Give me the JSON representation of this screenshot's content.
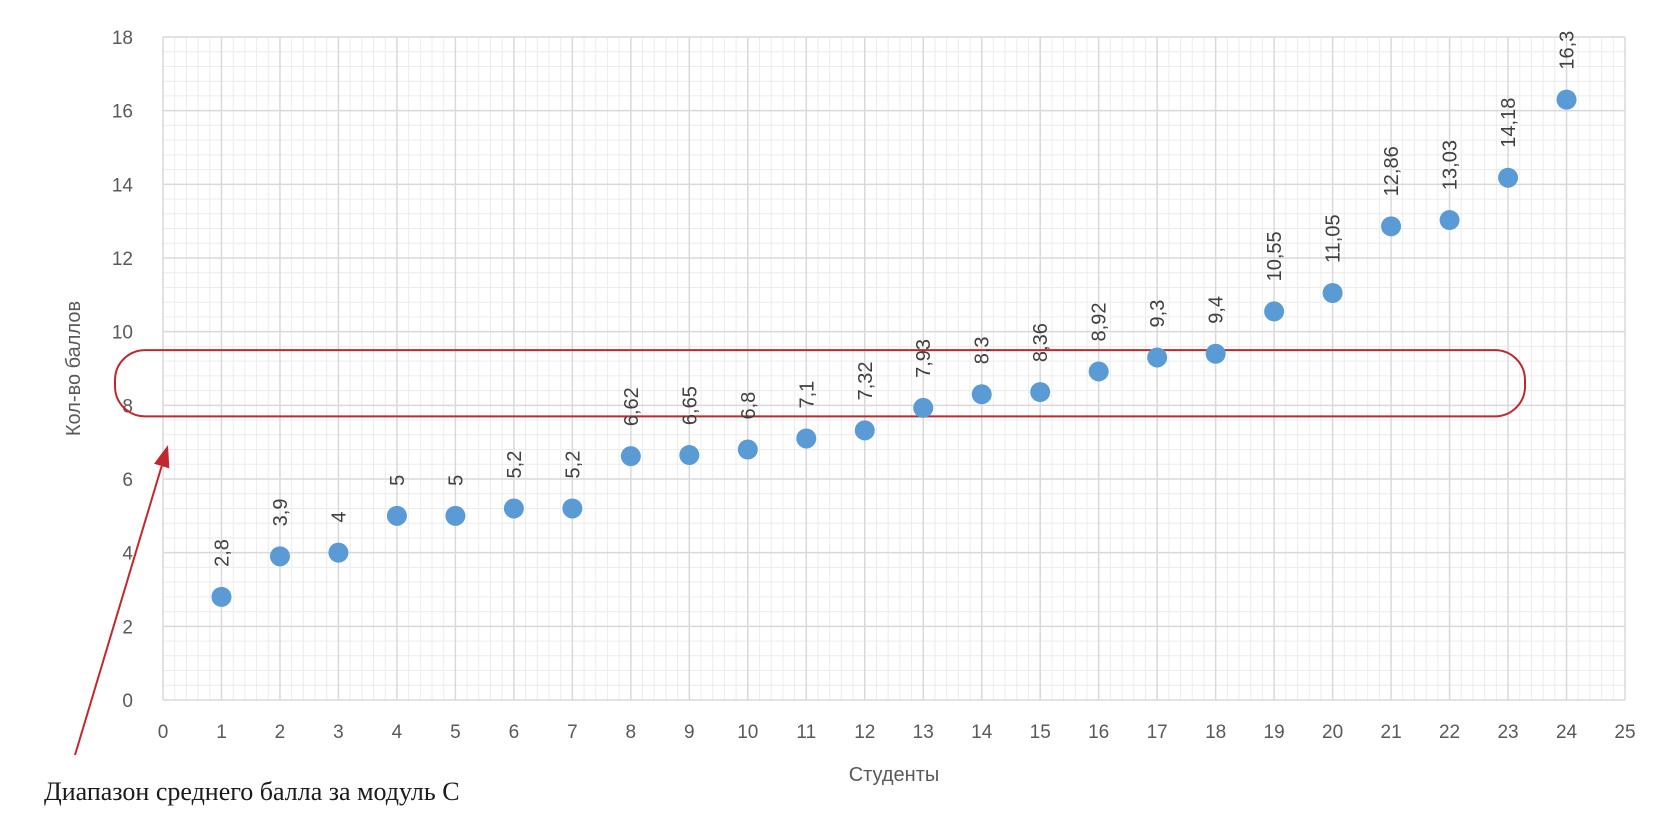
{
  "chart_data": {
    "type": "scatter",
    "xlabel": "Студенты",
    "ylabel": "Кол-во баллов",
    "xlim": [
      0,
      25
    ],
    "ylim": [
      0,
      18
    ],
    "x_ticks": [
      0,
      1,
      2,
      3,
      4,
      5,
      6,
      7,
      8,
      9,
      10,
      11,
      12,
      13,
      14,
      15,
      16,
      17,
      18,
      19,
      20,
      21,
      22,
      23,
      24,
      25
    ],
    "y_ticks": [
      0,
      2,
      4,
      6,
      8,
      10,
      12,
      14,
      16,
      18
    ],
    "grid": "major and minor",
    "legend": "none",
    "series": [
      {
        "x": [
          1,
          2,
          3,
          4,
          5,
          6,
          7,
          8,
          9,
          10,
          11,
          12,
          13,
          14,
          15,
          16,
          17,
          18,
          19,
          20,
          21,
          22,
          23,
          24
        ],
        "values": [
          2.8,
          3.9,
          4,
          5,
          5,
          5.2,
          5.2,
          6.62,
          6.65,
          6.8,
          7.1,
          7.32,
          7.93,
          8.3,
          8.36,
          8.92,
          9.3,
          9.4,
          10.55,
          11.05,
          12.86,
          13.03,
          14.18,
          16.3
        ],
        "labels": [
          "2,8",
          "3,9",
          "4",
          "5",
          "5",
          "5,2",
          "5,2",
          "6,62",
          "6,65",
          "6,8",
          "7,1",
          "7,32",
          "7,93",
          "8,3",
          "8,36",
          "8,92",
          "9,3",
          "9,4",
          "10,55",
          "11,05",
          "12,86",
          "13,03",
          "14,18",
          "16,3"
        ],
        "color": "#5b9bd5"
      }
    ],
    "highlight_band": {
      "y_from": 7.7,
      "y_to": 9.5,
      "color": "#c0282d"
    },
    "annotation": {
      "text": "Диапазон среднего балла за модуль С",
      "color": "#c0282d"
    },
    "colors": {
      "grid_major": "#d9d9d9",
      "grid_minor": "#ececec",
      "tick_text": "#595959"
    }
  }
}
